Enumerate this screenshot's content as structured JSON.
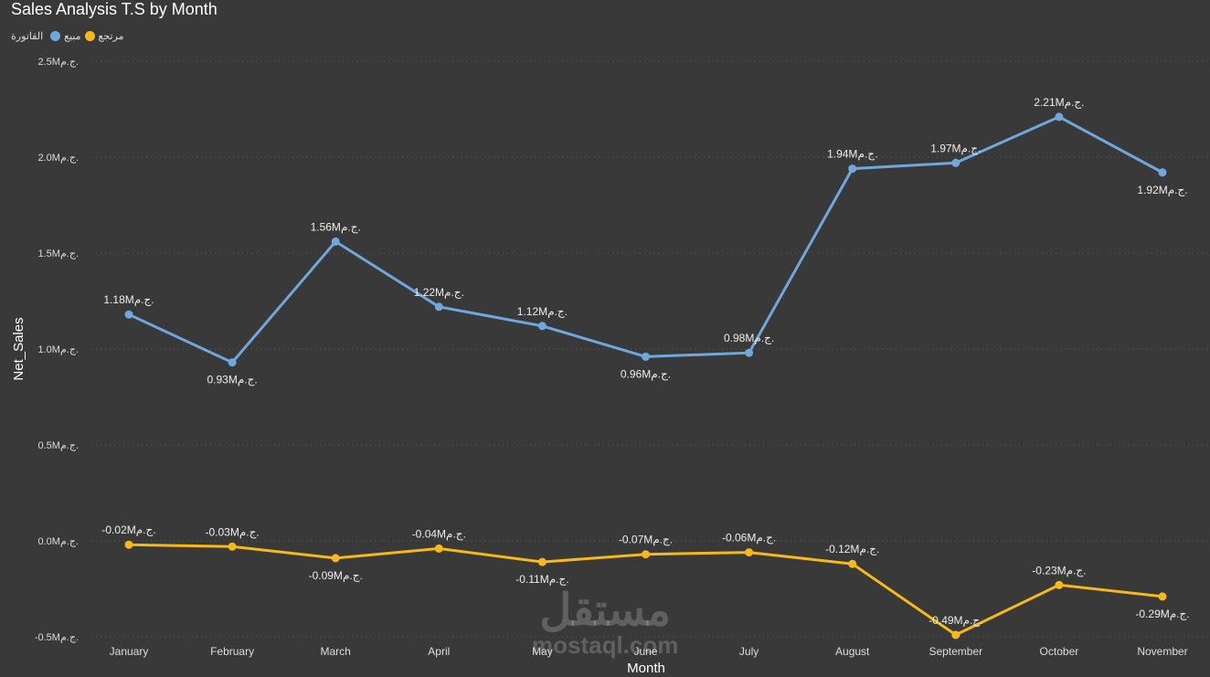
{
  "chart_data": {
    "type": "line",
    "title": "Sales Analysis T.S by Month",
    "xlabel": "Month",
    "ylabel": "Net_Sales",
    "legend_title": "القاتورة",
    "legend_position": "top-left",
    "categories": [
      "January",
      "February",
      "March",
      "April",
      "May",
      "June",
      "July",
      "August",
      "September",
      "October",
      "November"
    ],
    "ylim": [
      -0.5,
      2.5
    ],
    "yticks": [
      -0.5,
      0.0,
      0.5,
      1.0,
      1.5,
      2.0,
      2.5
    ],
    "ytick_labels": [
      "-0.5Mج.م.",
      "0.0Mج.م.",
      "0.5Mج.م.",
      "1.0Mج.م.",
      "1.5Mج.م.",
      "2.0Mج.م.",
      "2.5Mج.م."
    ],
    "grid": true,
    "series": [
      {
        "name": "مبيع",
        "color": "#6fa8dc",
        "values": [
          1.18,
          0.93,
          1.56,
          1.22,
          1.12,
          0.96,
          0.98,
          1.94,
          1.97,
          2.21,
          1.92
        ],
        "labels": [
          "1.18Mج.م.",
          "0.93Mج.م.",
          "1.56Mج.م.",
          "1.22Mج.م.",
          "1.12Mج.م.",
          "0.96Mج.م.",
          "0.98Mج.م.",
          "1.94Mج.م.",
          "1.97Mج.م.",
          "2.21Mج.م.",
          "1.92Mج.م."
        ],
        "label_pos": [
          "above",
          "below",
          "above",
          "above",
          "above",
          "below",
          "above",
          "above",
          "above",
          "above",
          "below"
        ]
      },
      {
        "name": "مرتجع",
        "color": "#f7b918",
        "values": [
          -0.02,
          -0.03,
          -0.09,
          -0.04,
          -0.11,
          -0.07,
          -0.06,
          -0.12,
          -0.49,
          -0.23,
          -0.29
        ],
        "labels": [
          "-0.02Mج.م.",
          "-0.03Mج.م.",
          "-0.09Mج.م.",
          "-0.04Mج.م.",
          "-0.11Mج.م.",
          "-0.07Mج.م.",
          "-0.06Mج.م.",
          "-0.12Mج.م.",
          "-0.49Mج.م.",
          "-0.23Mج.م.",
          "-0.29Mج.م."
        ],
        "label_pos": [
          "above",
          "above",
          "below",
          "above",
          "below",
          "above",
          "above",
          "above",
          "above",
          "above",
          "below"
        ]
      }
    ]
  },
  "watermark": {
    "arabic": "مستقل",
    "latin": "mostaql.com"
  }
}
